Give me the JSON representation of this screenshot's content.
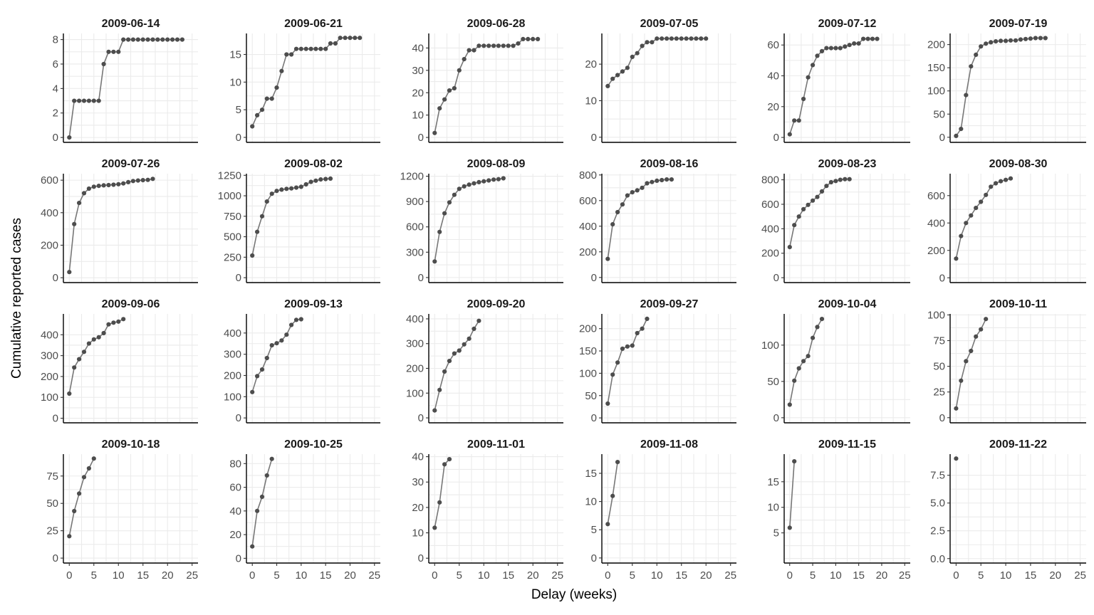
{
  "chart_data": {
    "type": "line",
    "layout": "facet-grid",
    "xlabel": "Delay (weeks)",
    "ylabel": "Cumulative reported cases",
    "xlim": [
      -1.2,
      26.2
    ],
    "x_ticks": [
      0,
      5,
      10,
      15,
      20,
      25
    ],
    "grid": true,
    "colors": {
      "point": "#4d4d4d",
      "line": "#777777",
      "grid": "#ebebeb",
      "axis": "#000000"
    },
    "panels": [
      {
        "title": "2009-06-14",
        "ylim": [
          -0.4,
          8.5
        ],
        "y_ticks": [
          0,
          2,
          4,
          6,
          8
        ],
        "y_tick_labels": [
          "0",
          "2",
          "4",
          "6",
          "8"
        ],
        "values": [
          0,
          3,
          3,
          3,
          3,
          3,
          3,
          6,
          7,
          7,
          7,
          8,
          8,
          8,
          8,
          8,
          8,
          8,
          8,
          8,
          8,
          8,
          8,
          8
        ]
      },
      {
        "title": "2009-06-21",
        "ylim": [
          -0.9,
          18.8
        ],
        "y_ticks": [
          0,
          5,
          10,
          15
        ],
        "y_tick_labels": [
          "0",
          "5",
          "10",
          "15"
        ],
        "values": [
          2,
          4,
          5,
          7,
          7,
          9,
          12,
          15,
          15,
          16,
          16,
          16,
          16,
          16,
          16,
          16,
          17,
          17,
          18,
          18,
          18,
          18,
          18
        ]
      },
      {
        "title": "2009-06-28",
        "ylim": [
          -2.2,
          46.5
        ],
        "y_ticks": [
          0,
          10,
          20,
          30,
          40
        ],
        "y_tick_labels": [
          "0",
          "10",
          "20",
          "30",
          "40"
        ],
        "values": [
          2,
          13,
          17,
          21,
          22,
          30,
          35,
          39,
          39,
          41,
          41,
          41,
          41,
          41,
          41,
          41,
          41,
          42,
          44,
          44,
          44,
          44
        ]
      },
      {
        "title": "2009-07-05",
        "ylim": [
          -1.4,
          28.4
        ],
        "y_ticks": [
          0,
          10,
          20
        ],
        "y_tick_labels": [
          "0",
          "10",
          "20"
        ],
        "values": [
          14,
          16,
          17,
          18,
          19,
          22,
          23,
          25,
          26,
          26,
          27,
          27,
          27,
          27,
          27,
          27,
          27,
          27,
          27,
          27,
          27
        ]
      },
      {
        "title": "2009-07-12",
        "ylim": [
          -3.2,
          67.5
        ],
        "y_ticks": [
          0,
          20,
          40,
          60
        ],
        "y_tick_labels": [
          "0",
          "20",
          "40",
          "60"
        ],
        "values": [
          2,
          11,
          11,
          25,
          39,
          47,
          53,
          56,
          58,
          58,
          58,
          58,
          59,
          60,
          61,
          61,
          64,
          64,
          64,
          64
        ]
      },
      {
        "title": "2009-07-19",
        "ylim": [
          -11,
          224
        ],
        "y_ticks": [
          0,
          50,
          100,
          150,
          200
        ],
        "y_tick_labels": [
          "0",
          "50",
          "100",
          "150",
          "200"
        ],
        "values": [
          3,
          18,
          91,
          153,
          178,
          196,
          202,
          205,
          207,
          208,
          208,
          209,
          209,
          211,
          212,
          213,
          214,
          214,
          214
        ]
      },
      {
        "title": "2009-07-26",
        "ylim": [
          -30,
          640
        ],
        "y_ticks": [
          0,
          200,
          400,
          600
        ],
        "y_tick_labels": [
          "0",
          "200",
          "400",
          "600"
        ],
        "values": [
          35,
          330,
          460,
          520,
          548,
          560,
          565,
          568,
          570,
          572,
          575,
          580,
          588,
          595,
          598,
          600,
          602,
          608
        ]
      },
      {
        "title": "2009-08-02",
        "ylim": [
          -60,
          1270
        ],
        "y_ticks": [
          0,
          250,
          500,
          750,
          1000,
          1250
        ],
        "y_tick_labels": [
          "0",
          "250",
          "500",
          "750",
          "1000",
          "1250"
        ],
        "values": [
          270,
          560,
          750,
          930,
          1025,
          1060,
          1075,
          1085,
          1090,
          1100,
          1110,
          1140,
          1170,
          1185,
          1200,
          1205,
          1210
        ]
      },
      {
        "title": "2009-08-09",
        "ylim": [
          -60,
          1230
        ],
        "y_ticks": [
          0,
          300,
          600,
          900,
          1200
        ],
        "y_tick_labels": [
          "0",
          "300",
          "600",
          "900",
          "1200"
        ],
        "values": [
          190,
          540,
          760,
          890,
          980,
          1050,
          1080,
          1100,
          1115,
          1130,
          1140,
          1150,
          1160,
          1165,
          1175
        ]
      },
      {
        "title": "2009-08-16",
        "ylim": [
          -40,
          810
        ],
        "y_ticks": [
          0,
          200,
          400,
          600,
          800
        ],
        "y_tick_labels": [
          "0",
          "200",
          "400",
          "600",
          "800"
        ],
        "values": [
          145,
          415,
          510,
          570,
          640,
          665,
          680,
          700,
          735,
          745,
          755,
          760,
          765,
          765
        ]
      },
      {
        "title": "2009-08-23",
        "ylim": [
          -40,
          850
        ],
        "y_ticks": [
          0,
          200,
          400,
          600,
          800
        ],
        "y_tick_labels": [
          "0",
          "200",
          "400",
          "600",
          "800"
        ],
        "values": [
          250,
          430,
          500,
          560,
          595,
          630,
          660,
          705,
          750,
          780,
          790,
          800,
          805,
          805
        ]
      },
      {
        "title": "2009-08-30",
        "ylim": [
          -35,
          760
        ],
        "y_ticks": [
          0,
          200,
          400,
          600
        ],
        "y_tick_labels": [
          "0",
          "200",
          "400",
          "600"
        ],
        "values": [
          140,
          305,
          400,
          455,
          510,
          555,
          605,
          665,
          690,
          705,
          715,
          725
        ]
      },
      {
        "title": "2009-09-06",
        "ylim": [
          -22,
          500
        ],
        "y_ticks": [
          0,
          100,
          200,
          300,
          400
        ],
        "y_tick_labels": [
          "0",
          "100",
          "200",
          "300",
          "400"
        ],
        "values": [
          118,
          243,
          283,
          318,
          358,
          378,
          388,
          408,
          450,
          458,
          463,
          475
        ]
      },
      {
        "title": "2009-09-13",
        "ylim": [
          -23,
          490
        ],
        "y_ticks": [
          0,
          100,
          200,
          300,
          400
        ],
        "y_tick_labels": [
          "0",
          "100",
          "200",
          "300",
          "400"
        ],
        "values": [
          122,
          197,
          228,
          282,
          342,
          352,
          365,
          392,
          438,
          462,
          465
        ]
      },
      {
        "title": "2009-09-20",
        "ylim": [
          -20,
          420
        ],
        "y_ticks": [
          0,
          100,
          200,
          300,
          400
        ],
        "y_tick_labels": [
          "0",
          "100",
          "200",
          "300",
          "400"
        ],
        "values": [
          30,
          113,
          187,
          230,
          260,
          272,
          297,
          320,
          360,
          392
        ]
      },
      {
        "title": "2009-09-27",
        "ylim": [
          -11,
          233
        ],
        "y_ticks": [
          0,
          50,
          100,
          150,
          200
        ],
        "y_tick_labels": [
          "0",
          "50",
          "100",
          "150",
          "200"
        ],
        "values": [
          32,
          97,
          124,
          155,
          160,
          162,
          190,
          200,
          222
        ]
      },
      {
        "title": "2009-10-04",
        "ylim": [
          -7,
          143
        ],
        "y_ticks": [
          0,
          50,
          100
        ],
        "y_tick_labels": [
          "0",
          "50",
          "100"
        ],
        "values": [
          18,
          51,
          68,
          78,
          85,
          110,
          125,
          136
        ]
      },
      {
        "title": "2009-10-11",
        "ylim": [
          -5,
          101
        ],
        "y_ticks": [
          0,
          25,
          50,
          75,
          100
        ],
        "y_tick_labels": [
          "0",
          "25",
          "50",
          "75",
          "100"
        ],
        "values": [
          9,
          36,
          55,
          65,
          79,
          86,
          96
        ]
      },
      {
        "title": "2009-10-18",
        "ylim": [
          -4.5,
          95
        ],
        "y_ticks": [
          0,
          25,
          50,
          75
        ],
        "y_tick_labels": [
          "0",
          "25",
          "50",
          "75"
        ],
        "values": [
          20,
          43,
          59,
          74,
          82,
          91
        ]
      },
      {
        "title": "2009-10-25",
        "ylim": [
          -4,
          88
        ],
        "y_ticks": [
          0,
          20,
          40,
          60,
          80
        ],
        "y_tick_labels": [
          "0",
          "20",
          "40",
          "60",
          "80"
        ],
        "values": [
          10,
          40,
          52,
          70,
          84
        ]
      },
      {
        "title": "2009-11-01",
        "ylim": [
          -1.9,
          41
        ],
        "y_ticks": [
          0,
          10,
          20,
          30,
          40
        ],
        "y_tick_labels": [
          "0",
          "10",
          "20",
          "30",
          "40"
        ],
        "values": [
          12,
          22,
          37,
          39
        ]
      },
      {
        "title": "2009-11-08",
        "ylim": [
          -0.9,
          18.4
        ],
        "y_ticks": [
          0,
          5,
          10,
          15
        ],
        "y_tick_labels": [
          "0",
          "5",
          "10",
          "15"
        ],
        "values": [
          6,
          11,
          17
        ]
      },
      {
        "title": "2009-11-15",
        "ylim": [
          -0.9,
          20.4
        ],
        "y_ticks": [
          0,
          5,
          10,
          15
        ],
        "y_tick_labels": [
          "5",
          "10",
          "15"
        ],
        "y_tick_values": [
          5,
          10,
          15
        ],
        "values": [
          6,
          19
        ]
      },
      {
        "title": "2009-11-22",
        "ylim": [
          -0.4,
          9.4
        ],
        "y_ticks": [
          0,
          2.5,
          5,
          7.5
        ],
        "y_tick_labels": [
          "0.0",
          "2.5",
          "5.0",
          "7.5"
        ],
        "values": [
          9
        ]
      }
    ]
  }
}
